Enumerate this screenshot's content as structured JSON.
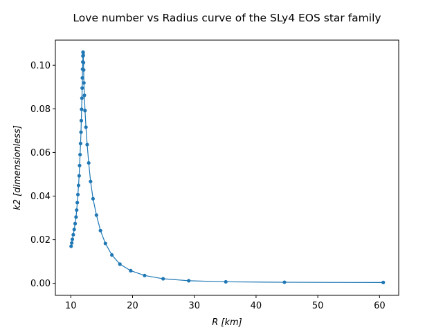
{
  "chart_data": {
    "type": "line",
    "title": "Love number vs Radius curve of the SLy4 EOS star family",
    "xlabel": "R [km]",
    "ylabel": "k2 [dimensionless]",
    "xlim": [
      7.5,
      63.1
    ],
    "ylim": [
      -0.0055,
      0.1115
    ],
    "xticks": [
      10,
      20,
      30,
      40,
      50,
      60
    ],
    "yticks": [
      0.0,
      0.02,
      0.04,
      0.06,
      0.08,
      0.1
    ],
    "xtick_labels": [
      "10",
      "20",
      "30",
      "40",
      "50",
      "60"
    ],
    "ytick_labels": [
      "0.00",
      "0.02",
      "0.04",
      "0.06",
      "0.08",
      "0.10"
    ],
    "grid": false,
    "marker": "circle",
    "series": [
      {
        "color": "#1f77b4",
        "points": [
          [
            10.05,
            0.017
          ],
          [
            10.15,
            0.0185
          ],
          [
            10.25,
            0.0202
          ],
          [
            10.4,
            0.0223
          ],
          [
            10.55,
            0.0247
          ],
          [
            10.7,
            0.0274
          ],
          [
            10.85,
            0.0304
          ],
          [
            10.95,
            0.0336
          ],
          [
            11.05,
            0.037
          ],
          [
            11.15,
            0.0407
          ],
          [
            11.25,
            0.0449
          ],
          [
            11.35,
            0.0493
          ],
          [
            11.42,
            0.054
          ],
          [
            11.5,
            0.059
          ],
          [
            11.58,
            0.0641
          ],
          [
            11.65,
            0.0693
          ],
          [
            11.7,
            0.0746
          ],
          [
            11.75,
            0.0798
          ],
          [
            11.8,
            0.0849
          ],
          [
            11.84,
            0.0895
          ],
          [
            11.87,
            0.0942
          ],
          [
            11.9,
            0.0982
          ],
          [
            11.94,
            0.1015
          ],
          [
            11.96,
            0.1042
          ],
          [
            11.98,
            0.106
          ],
          [
            12.0,
            0.1058
          ],
          [
            12.02,
            0.1045
          ],
          [
            12.05,
            0.1012
          ],
          [
            12.08,
            0.0978
          ],
          [
            12.12,
            0.0919
          ],
          [
            12.2,
            0.0862
          ],
          [
            12.3,
            0.0792
          ],
          [
            12.45,
            0.0716
          ],
          [
            12.65,
            0.0636
          ],
          [
            12.9,
            0.0552
          ],
          [
            13.2,
            0.0467
          ],
          [
            13.6,
            0.0388
          ],
          [
            14.15,
            0.0313
          ],
          [
            14.8,
            0.0242
          ],
          [
            15.6,
            0.0183
          ],
          [
            16.65,
            0.013
          ],
          [
            17.95,
            0.0088
          ],
          [
            19.7,
            0.0058
          ],
          [
            21.95,
            0.0036
          ],
          [
            24.95,
            0.0021
          ],
          [
            29.1,
            0.0012
          ],
          [
            35.1,
            0.0007
          ],
          [
            44.6,
            0.0005
          ],
          [
            60.6,
            0.0004
          ]
        ]
      }
    ]
  }
}
